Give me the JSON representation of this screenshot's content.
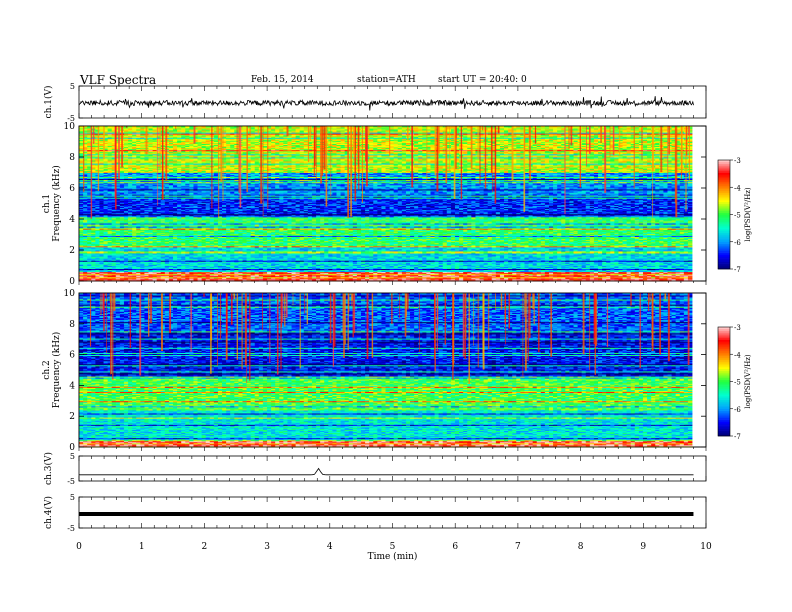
{
  "header": {
    "title": "VLF  Spectra",
    "date": "Feb. 15, 2014",
    "station": "station=ATH",
    "start": "start  UT =   20:40: 0"
  },
  "chart_data": [
    {
      "type": "line",
      "panel": "ch1",
      "ylabel": "ch.1(V)",
      "ylim": [
        -5,
        5
      ],
      "yticks": [
        "5",
        "-5"
      ],
      "xlim": [
        0,
        10
      ],
      "noise_amplitude": 1,
      "baseline": -0.3
    },
    {
      "type": "heatmap",
      "panel": "ch1-spectrogram",
      "ylabel": "ch.1  Frequency  (kHz)",
      "ylim": [
        0,
        10
      ],
      "yticks": [
        "0",
        "2",
        "4",
        "6",
        "8",
        "10"
      ],
      "xlim": [
        0,
        9.8
      ],
      "colorbar": {
        "label": "log(PSD(V²/Hz)",
        "range": [
          -7,
          -3
        ],
        "ticks": [
          "-3",
          "-4",
          "-5",
          "-6",
          "-7"
        ]
      },
      "bands_khz": [
        {
          "from": 0,
          "to": 0.6,
          "level": -3.4
        },
        {
          "from": 0.6,
          "to": 2.2,
          "level": -5.7
        },
        {
          "from": 2.2,
          "to": 4.2,
          "level": -5.1
        },
        {
          "from": 4.2,
          "to": 5.6,
          "level": -6.4
        },
        {
          "from": 5.6,
          "to": 7.0,
          "level": -6.0
        },
        {
          "from": 7.0,
          "to": 10,
          "level": -4.6
        }
      ]
    },
    {
      "type": "heatmap",
      "panel": "ch2-spectrogram",
      "ylabel": "ch.2  Frequency  (kHz)",
      "ylim": [
        0,
        10
      ],
      "yticks": [
        "0",
        "2",
        "4",
        "6",
        "8",
        "10"
      ],
      "xlim": [
        0,
        9.8
      ],
      "colorbar": {
        "label": "log(PSD(V²/Hz)",
        "range": [
          -7,
          -3
        ],
        "ticks": [
          "-3",
          "-4",
          "-5",
          "-6",
          "-7"
        ]
      },
      "bands_khz": [
        {
          "from": 0,
          "to": 0.4,
          "level": -3.3
        },
        {
          "from": 0.4,
          "to": 2.4,
          "level": -5.6
        },
        {
          "from": 2.4,
          "to": 4.6,
          "level": -5.0
        },
        {
          "from": 4.6,
          "to": 7.5,
          "level": -6.5
        },
        {
          "from": 7.5,
          "to": 10,
          "level": -6.2
        }
      ]
    },
    {
      "type": "line",
      "panel": "ch3",
      "ylabel": "ch.3(V)",
      "ylim": [
        -5,
        5
      ],
      "yticks": [
        "5",
        "-5"
      ],
      "xlim": [
        0,
        10
      ],
      "baseline": -2.5,
      "spike": {
        "x": 3.82,
        "height": 2.5
      }
    },
    {
      "type": "line",
      "panel": "ch4",
      "ylabel": "ch.4(V)",
      "ylim": [
        -5,
        5
      ],
      "yticks": [
        "5",
        "-5"
      ],
      "xlim": [
        0,
        10
      ],
      "baseline": -0.5
    }
  ],
  "xaxis": {
    "label": "Time  (min)",
    "ticks": [
      "0",
      "1",
      "2",
      "3",
      "4",
      "5",
      "6",
      "7",
      "8",
      "9",
      "10"
    ]
  },
  "colors": {
    "colormap": [
      "#000070",
      "#0000ff",
      "#00a0ff",
      "#00ffd0",
      "#20ff40",
      "#ffff00",
      "#ff8000",
      "#ff0000",
      "#ffd0d0"
    ]
  }
}
